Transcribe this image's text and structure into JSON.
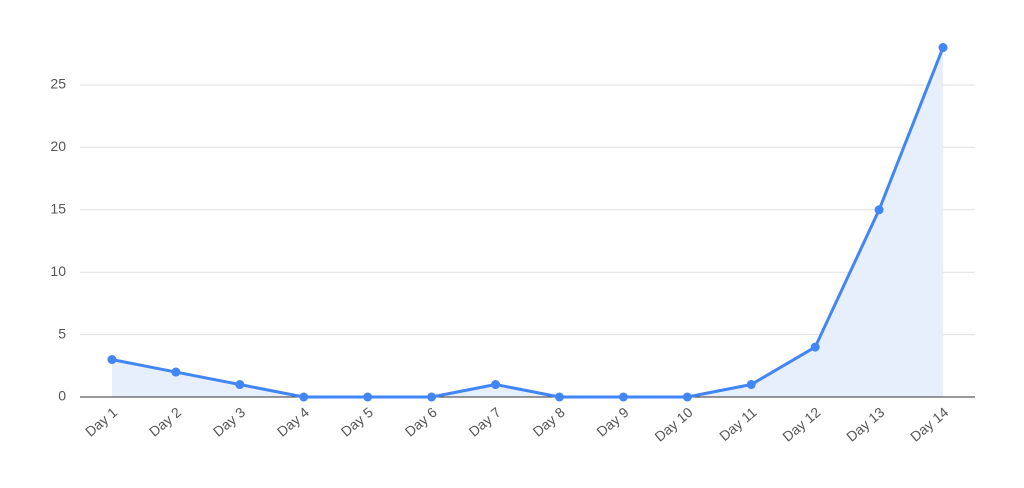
{
  "chart_data": {
    "type": "area",
    "categories": [
      "Day 1",
      "Day 2",
      "Day 3",
      "Day 4",
      "Day 5",
      "Day 6",
      "Day 7",
      "Day 8",
      "Day 9",
      "Day 10",
      "Day 11",
      "Day 12",
      "Day 13",
      "Day 14"
    ],
    "values": [
      3,
      2,
      1,
      0,
      0,
      0,
      1,
      0,
      0,
      0,
      1,
      4,
      15,
      28
    ],
    "color": "#4285f4",
    "fill": "#e8effc",
    "ylim": [
      0,
      30
    ],
    "yticks": [
      0,
      5,
      10,
      15,
      20,
      25
    ],
    "grid": true
  }
}
